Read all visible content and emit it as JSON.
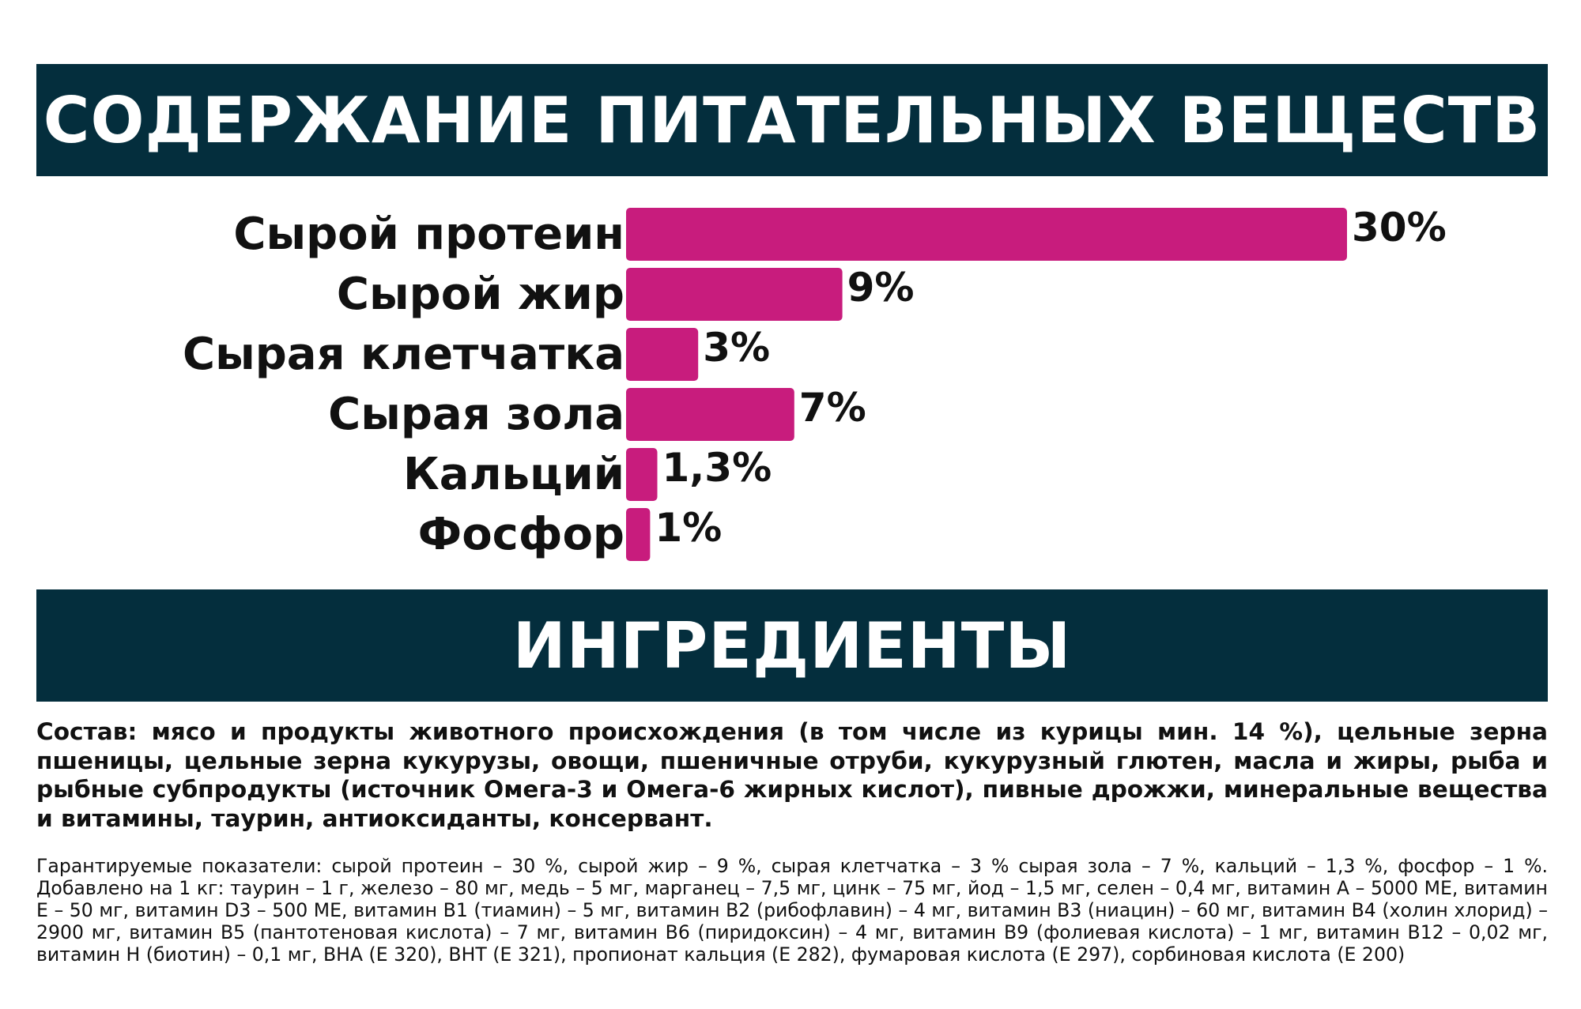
{
  "nutrients_heading": "СОДЕРЖАНИЕ ПИТАТЕЛЬНЫХ ВЕЩЕСТВ",
  "ingredients_heading": "ИНГРЕДИЕНТЫ",
  "chart_data": {
    "type": "bar",
    "orientation": "horizontal",
    "categories": [
      "Сырой протеин",
      "Сырой жир",
      "Сырая клетчатка",
      "Сырая зола",
      "Кальций",
      "Фосфор"
    ],
    "values": [
      30,
      9,
      3,
      7,
      1.3,
      1
    ],
    "value_labels": [
      "30%",
      "9%",
      "3%",
      "7%",
      "1,3%",
      "1%"
    ],
    "bar_color": "#c81c7d",
    "xlim": [
      0,
      30
    ],
    "grid": false
  },
  "composition_text": "Состав: мясо и продукты животного происхождения (в том числе из курицы мин. 14 %), цельные зерна пшеницы, цельные зерна кукурузы, овощи, пшеничные отруби, кукурузный глютен, масла и жиры, рыба и рыбные субпродукты (источник Омега-3 и Омега-6 жирных кислот), пивные дрожжи, минеральные вещества и витамины, таурин, антиоксиданты, консервант.",
  "guarantee_text": "Гарантируемые показатели: сырой протеин – 30 %, сырой жир – 9 %, сырая клетчатка – 3 % сырая зола – 7 %, кальций – 1,3 %, фосфор – 1 %. Добавлено на 1 кг: таурин – 1 г, железо – 80 мг, медь – 5 мг, марганец – 7,5 мг, цинк – 75 мг, йод – 1,5 мг, селен – 0,4 мг, витамин А – 5000 МЕ, витамин Е – 50 мг, витамин D3 – 500 МЕ, витамин B1 (тиамин) – 5 мг, витамин B2 (рибофлавин) – 4 мг, витамин B3 (ниацин) – 60 мг, витамин B4 (холин хлорид) – 2900 мг, витамин B5 (пантотеновая кислота) – 7 мг, витамин B6 (пиридоксин) – 4 мг, витамин B9 (фолиевая кислота) – 1 мг, витамин B12 – 0,02 мг, витамин Н (биотин) – 0,1 мг, ВНА (Е 320), ВНТ (Е 321), пропионат кальция (Е 282), фумаровая кислота (Е 297), сорбиновая кислота (Е 200)"
}
